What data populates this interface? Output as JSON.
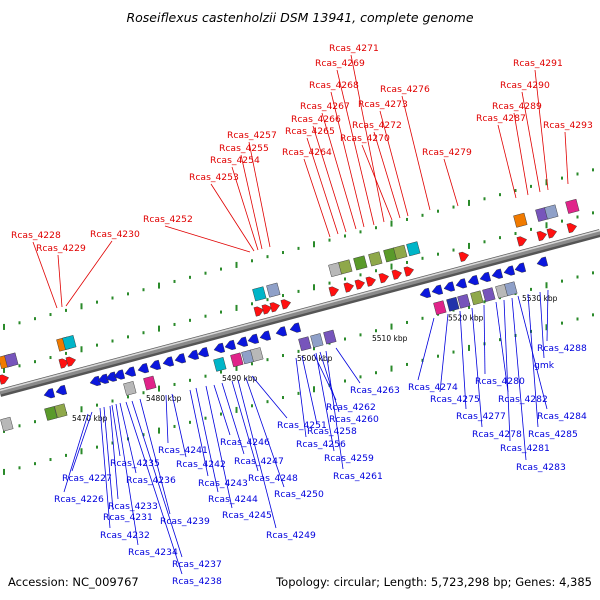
{
  "title": "Roseiflexus castenholzii DSM 13941, complete genome",
  "footer": {
    "accession": "Accession: NC_009767",
    "topology": "Topology: circular; Length: 5,723,298 bp; Genes: 4,385"
  },
  "colors": {
    "top_label": "#e00000",
    "bottom_label": "#0000dd",
    "backbone": "#8a8a8a",
    "tick": "#2a8a2a"
  },
  "scale_labels": [
    "5470 kbp",
    "5480 kbp",
    "5490 kbp",
    "5500 kbp",
    "5510 kbp",
    "5520 kbp",
    "5530 kbp"
  ],
  "top_labels": [
    "Rcas_4228",
    "Rcas_4229",
    "Rcas_4230",
    "Rcas_4252",
    "Rcas_4253",
    "Rcas_4254",
    "Rcas_4255",
    "Rcas_4257",
    "Rcas_4264",
    "Rcas_4265",
    "Rcas_4266",
    "Rcas_4267",
    "Rcas_4268",
    "Rcas_4269",
    "Rcas_4271",
    "Rcas_4270",
    "Rcas_4272",
    "Rcas_4273",
    "Rcas_4276",
    "Rcas_4279",
    "Rcas_4287",
    "Rcas_4289",
    "Rcas_4290",
    "Rcas_4291",
    "Rcas_4293"
  ],
  "bottom_labels": [
    "Rcas_4227",
    "Rcas_4226",
    "Rcas_4235",
    "Rcas_4233",
    "Rcas_4231",
    "Rcas_4236",
    "Rcas_4232",
    "Rcas_4239",
    "Rcas_4234",
    "Rcas_4237",
    "Rcas_4238",
    "Rcas_4241",
    "Rcas_4242",
    "Rcas_4243",
    "Rcas_4244",
    "Rcas_4245",
    "Rcas_4246",
    "Rcas_4247",
    "Rcas_4248",
    "Rcas_4251",
    "Rcas_4250",
    "Rcas_4249",
    "Rcas_4262",
    "Rcas_4260",
    "Rcas_4258",
    "Rcas_4256",
    "Rcas_4259",
    "Rcas_4261",
    "Rcas_4263",
    "Rcas_4274",
    "Rcas_4275",
    "Rcas_4277",
    "Rcas_4278",
    "Rcas_4280",
    "Rcas_4282",
    "Rcas_4281",
    "Rcas_4283",
    "Rcas_4284",
    "Rcas_4285",
    "gmk",
    "Rcas_4288"
  ]
}
